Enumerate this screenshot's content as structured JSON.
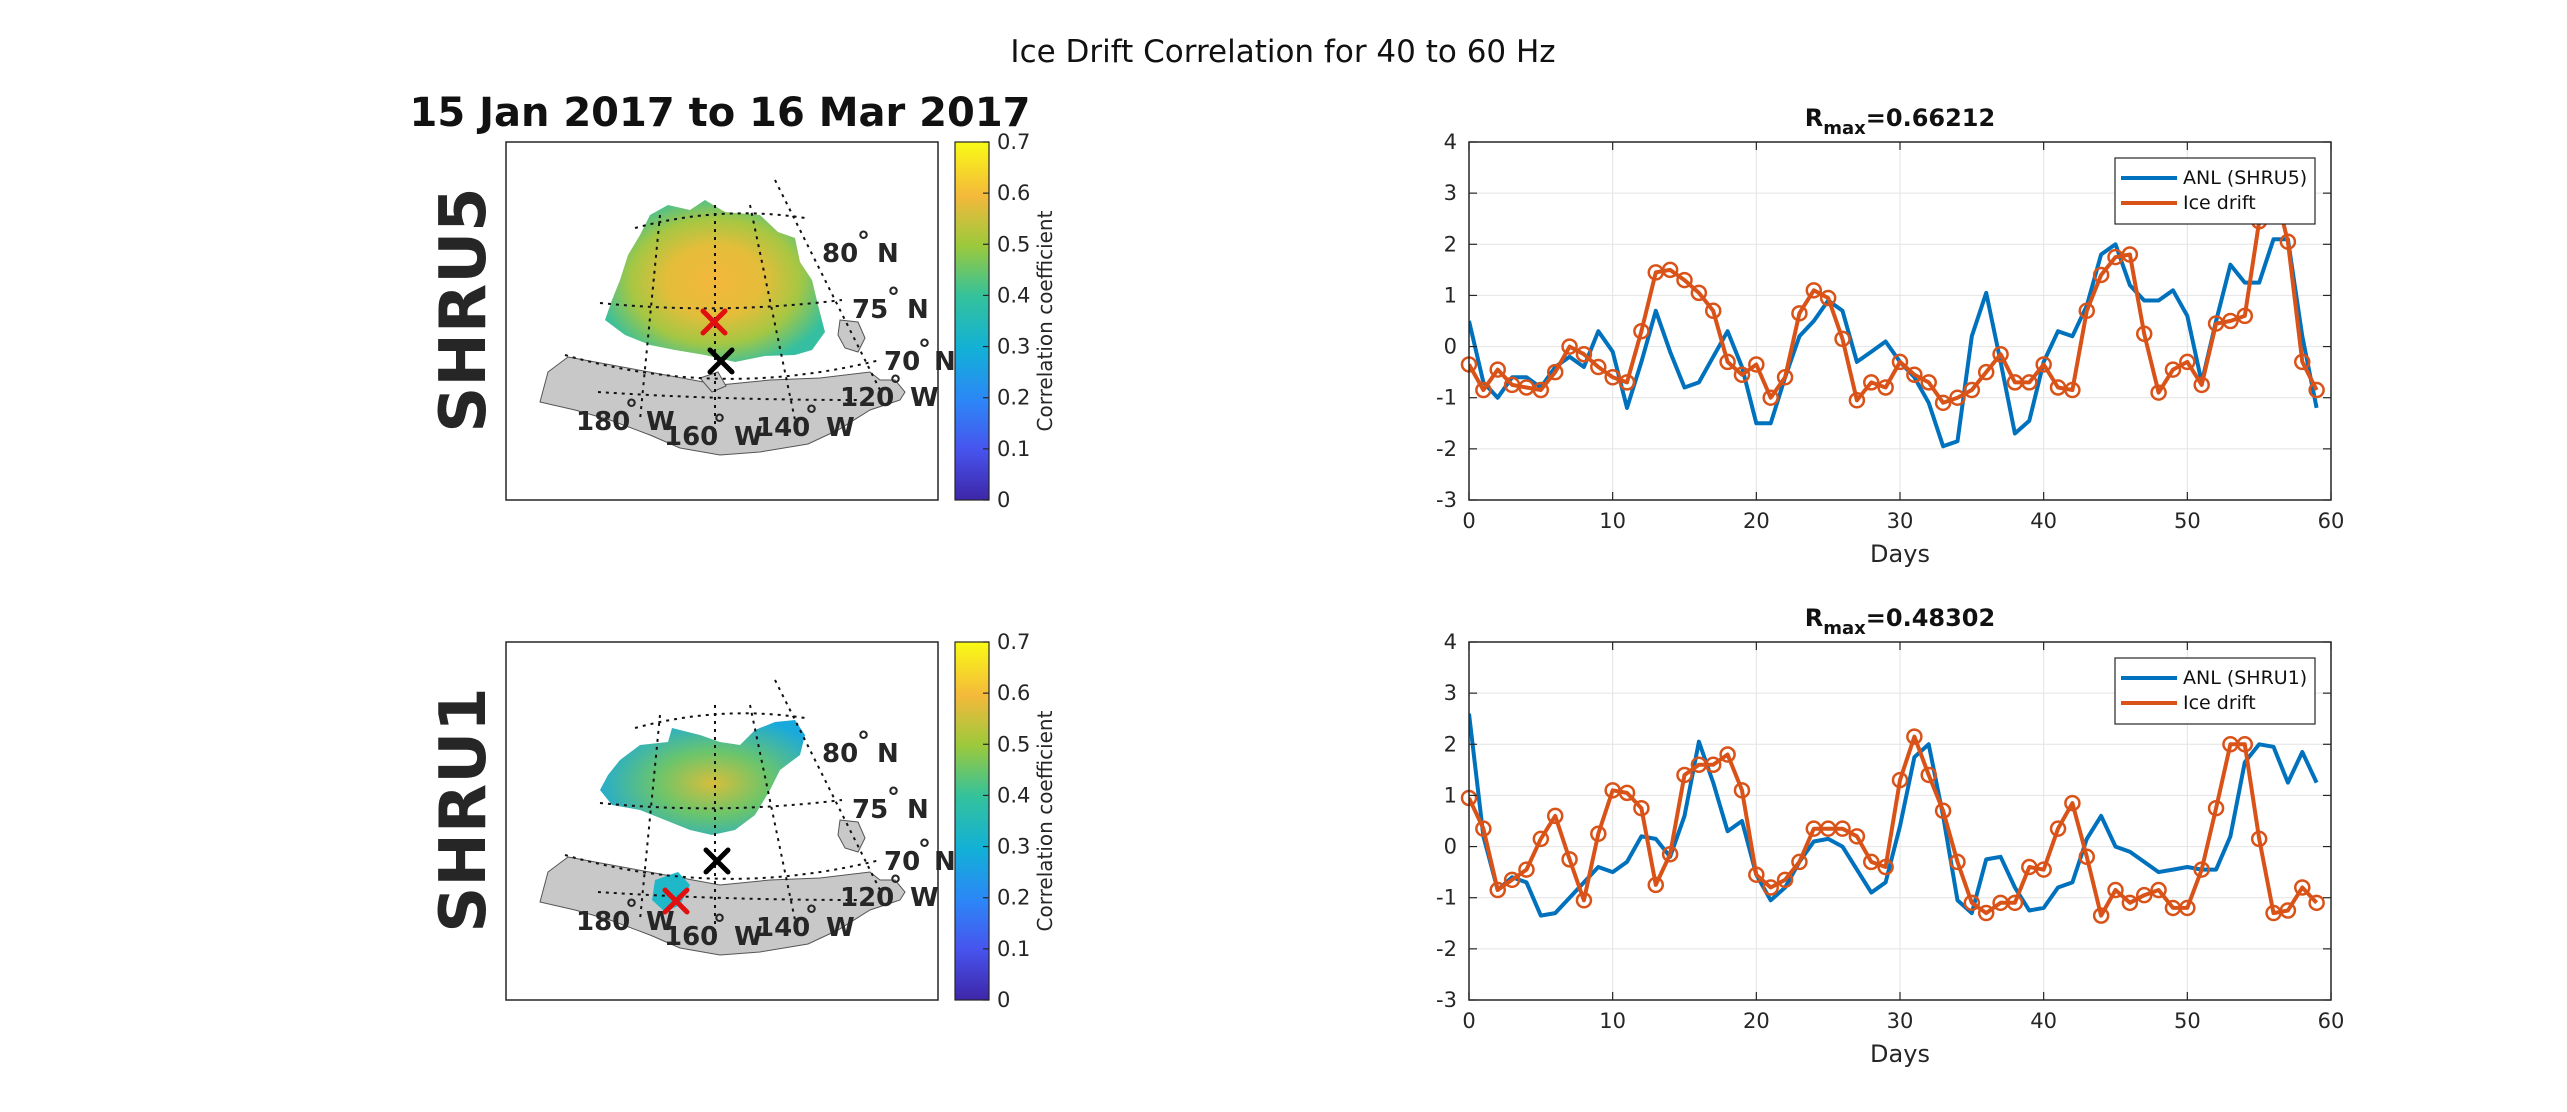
{
  "figure": {
    "suptitle": "Ice Drift Correlation for 40 to 60 Hz",
    "date_range": "15 Jan 2017 to 16 Mar 2017"
  },
  "colors": {
    "anl": "#0072BD",
    "ice": "#D95319",
    "land": "#C8C8C8",
    "red_marker": "#E01010",
    "black_marker": "#000000"
  },
  "maps": [
    {
      "row_label": "SHRU5",
      "colorbar": {
        "label": "Correlation coefficient",
        "ticks": [
          "0",
          "0.1",
          "0.2",
          "0.3",
          "0.4",
          "0.5",
          "0.6",
          "0.7"
        ]
      },
      "lat_labels": [
        {
          "deg": "80",
          "sym": "°",
          "dir": "N"
        },
        {
          "deg": "75",
          "sym": "°",
          "dir": "N"
        },
        {
          "deg": "70",
          "sym": "°",
          "dir": "N"
        }
      ],
      "lon_labels": [
        {
          "deg": "180",
          "sym": "°",
          "dir": "W"
        },
        {
          "deg": "160",
          "sym": "°",
          "dir": "W"
        },
        {
          "deg": "140",
          "sym": "°",
          "dir": "W"
        },
        {
          "deg": "120",
          "sym": "°",
          "dir": "W"
        }
      ],
      "markers": [
        {
          "type": "x",
          "color": "red",
          "label": ""
        },
        {
          "type": "x",
          "color": "black",
          "label": ""
        }
      ]
    },
    {
      "row_label": "SHRU1",
      "colorbar": {
        "label": "Correlation coefficient",
        "ticks": [
          "0",
          "0.1",
          "0.2",
          "0.3",
          "0.4",
          "0.5",
          "0.6",
          "0.7"
        ]
      },
      "lat_labels": [
        {
          "deg": "80",
          "sym": "°",
          "dir": "N"
        },
        {
          "deg": "75",
          "sym": "°",
          "dir": "N"
        },
        {
          "deg": "70",
          "sym": "°",
          "dir": "N"
        }
      ],
      "lon_labels": [
        {
          "deg": "180",
          "sym": "°",
          "dir": "W"
        },
        {
          "deg": "160",
          "sym": "°",
          "dir": "W"
        },
        {
          "deg": "140",
          "sym": "°",
          "dir": "W"
        },
        {
          "deg": "120",
          "sym": "°",
          "dir": "W"
        }
      ],
      "markers": [
        {
          "type": "x",
          "color": "red",
          "label": ""
        },
        {
          "type": "x",
          "color": "black",
          "label": ""
        }
      ]
    }
  ],
  "chart_data": [
    {
      "type": "line",
      "title_main": "R",
      "title_sub": "max",
      "title_value": "=0.66212",
      "xlabel": "Days",
      "ylabel": "",
      "xlim": [
        0,
        60
      ],
      "ylim": [
        -3,
        4
      ],
      "xticks": [
        "0",
        "10",
        "20",
        "30",
        "40",
        "50",
        "60"
      ],
      "yticks": [
        "-3",
        "-2",
        "-1",
        "0",
        "1",
        "2",
        "3",
        "4"
      ],
      "grid": true,
      "legend_position": "top-right",
      "series": [
        {
          "name": "ANL (SHRU5)",
          "marker": "none",
          "x": [
            0,
            1,
            2,
            3,
            4,
            5,
            6,
            7,
            8,
            9,
            10,
            11,
            12,
            13,
            14,
            15,
            16,
            17,
            18,
            19,
            20,
            21,
            22,
            23,
            24,
            25,
            26,
            27,
            28,
            29,
            30,
            31,
            32,
            33,
            34,
            35,
            36,
            37,
            38,
            39,
            40,
            41,
            42,
            43,
            44,
            45,
            46,
            47,
            48,
            49,
            50,
            51,
            52,
            53,
            54,
            55,
            56,
            57,
            58,
            59
          ],
          "y": [
            0.5,
            -0.7,
            -1.0,
            -0.6,
            -0.6,
            -0.8,
            -0.4,
            -0.2,
            -0.4,
            0.3,
            -0.1,
            -1.2,
            -0.3,
            0.7,
            -0.1,
            -0.8,
            -0.7,
            -0.2,
            0.3,
            -0.4,
            -1.5,
            -1.5,
            -0.6,
            0.2,
            0.5,
            0.9,
            0.7,
            -0.3,
            -0.1,
            0.1,
            -0.3,
            -0.6,
            -1.1,
            -1.95,
            -1.85,
            0.2,
            1.05,
            -0.3,
            -1.7,
            -1.45,
            -0.3,
            0.3,
            0.2,
            0.8,
            1.8,
            2.0,
            1.2,
            0.9,
            0.9,
            1.1,
            0.6,
            -0.7,
            0.5,
            1.6,
            1.25,
            1.25,
            2.1,
            2.1,
            0.2,
            -1.2
          ]
        },
        {
          "name": "Ice drift",
          "marker": "o",
          "x": [
            0,
            1,
            2,
            3,
            4,
            5,
            6,
            7,
            8,
            9,
            10,
            11,
            12,
            13,
            14,
            15,
            16,
            17,
            18,
            19,
            20,
            21,
            22,
            23,
            24,
            25,
            26,
            27,
            28,
            29,
            30,
            31,
            32,
            33,
            34,
            35,
            36,
            37,
            38,
            39,
            40,
            41,
            42,
            43,
            44,
            45,
            46,
            47,
            48,
            49,
            50,
            51,
            52,
            53,
            54,
            55,
            56,
            57,
            58,
            59
          ],
          "y": [
            -0.35,
            -0.85,
            -0.45,
            -0.75,
            -0.8,
            -0.85,
            -0.5,
            0.0,
            -0.15,
            -0.4,
            -0.6,
            -0.7,
            0.3,
            1.45,
            1.5,
            1.3,
            1.05,
            0.7,
            -0.3,
            -0.55,
            -0.35,
            -1.0,
            -0.6,
            0.65,
            1.1,
            0.95,
            0.15,
            -1.05,
            -0.7,
            -0.8,
            -0.3,
            -0.55,
            -0.7,
            -1.1,
            -1.0,
            -0.85,
            -0.5,
            -0.15,
            -0.7,
            -0.7,
            -0.35,
            -0.8,
            -0.85,
            0.7,
            1.4,
            1.75,
            1.8,
            0.25,
            -0.9,
            -0.45,
            -0.3,
            -0.75,
            0.45,
            0.5,
            0.6,
            2.45,
            3.2,
            2.05,
            -0.3,
            -0.85
          ]
        }
      ]
    },
    {
      "type": "line",
      "title_main": "R",
      "title_sub": "max",
      "title_value": "=0.48302",
      "xlabel": "Days",
      "ylabel": "",
      "xlim": [
        0,
        60
      ],
      "ylim": [
        -3,
        4
      ],
      "xticks": [
        "0",
        "10",
        "20",
        "30",
        "40",
        "50",
        "60"
      ],
      "yticks": [
        "-3",
        "-2",
        "-1",
        "0",
        "1",
        "2",
        "3",
        "4"
      ],
      "grid": true,
      "legend_position": "top-right",
      "series": [
        {
          "name": "ANL (SHRU1)",
          "marker": "none",
          "x": [
            0,
            1,
            2,
            3,
            4,
            5,
            6,
            7,
            8,
            9,
            10,
            11,
            12,
            13,
            14,
            15,
            16,
            17,
            18,
            19,
            20,
            21,
            22,
            23,
            24,
            25,
            26,
            27,
            28,
            29,
            30,
            31,
            32,
            33,
            34,
            35,
            36,
            37,
            38,
            39,
            40,
            41,
            42,
            43,
            44,
            45,
            46,
            47,
            48,
            49,
            50,
            51,
            52,
            53,
            54,
            55,
            56,
            57,
            58,
            59
          ],
          "y": [
            2.6,
            0.2,
            -0.85,
            -0.6,
            -0.7,
            -1.35,
            -1.3,
            -1.0,
            -0.7,
            -0.4,
            -0.5,
            -0.3,
            0.2,
            0.15,
            -0.2,
            0.6,
            2.05,
            1.25,
            0.3,
            0.5,
            -0.55,
            -1.05,
            -0.8,
            -0.3,
            0.1,
            0.15,
            0.0,
            -0.45,
            -0.9,
            -0.7,
            0.4,
            1.75,
            2.0,
            0.6,
            -1.05,
            -1.3,
            -0.25,
            -0.2,
            -0.8,
            -1.25,
            -1.2,
            -0.8,
            -0.7,
            0.15,
            0.6,
            0.0,
            -0.1,
            -0.3,
            -0.5,
            -0.45,
            -0.4,
            -0.45,
            -0.45,
            0.2,
            1.65,
            2.0,
            1.95,
            1.25,
            1.85,
            1.25
          ]
        },
        {
          "name": "Ice drift",
          "marker": "o",
          "x": [
            0,
            1,
            2,
            3,
            4,
            5,
            6,
            7,
            8,
            9,
            10,
            11,
            12,
            13,
            14,
            15,
            16,
            17,
            18,
            19,
            20,
            21,
            22,
            23,
            24,
            25,
            26,
            27,
            28,
            29,
            30,
            31,
            32,
            33,
            34,
            35,
            36,
            37,
            38,
            39,
            40,
            41,
            42,
            43,
            44,
            45,
            46,
            47,
            48,
            49,
            50,
            51,
            52,
            53,
            54,
            55,
            56,
            57,
            58,
            59
          ],
          "y": [
            0.95,
            0.35,
            -0.85,
            -0.65,
            -0.45,
            0.15,
            0.6,
            -0.25,
            -1.05,
            0.25,
            1.1,
            1.05,
            0.75,
            -0.75,
            -0.15,
            1.4,
            1.6,
            1.6,
            1.8,
            1.1,
            -0.55,
            -0.8,
            -0.65,
            -0.3,
            0.35,
            0.35,
            0.35,
            0.2,
            -0.3,
            -0.4,
            1.3,
            2.15,
            1.4,
            0.7,
            -0.3,
            -1.1,
            -1.3,
            -1.1,
            -1.1,
            -0.4,
            -0.45,
            0.35,
            0.85,
            -0.2,
            -1.35,
            -0.85,
            -1.1,
            -0.95,
            -0.85,
            -1.2,
            -1.2,
            -0.45,
            0.75,
            2.0,
            2.0,
            0.15,
            -1.3,
            -1.25,
            -0.8,
            -1.1
          ]
        }
      ]
    }
  ]
}
